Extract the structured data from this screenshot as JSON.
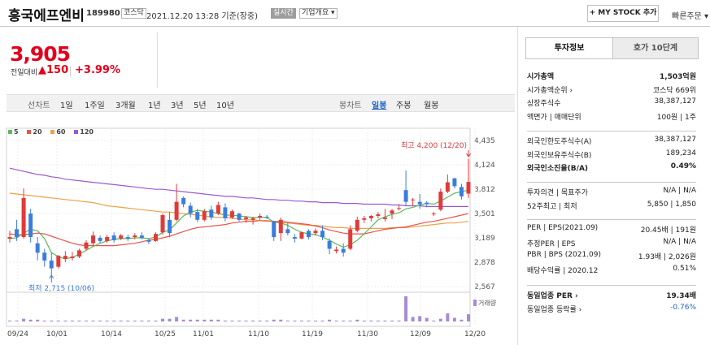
{
  "header": {
    "company_name": "흥국에프엔비",
    "stock_code": "189980",
    "market_tag": "코스닥",
    "datetime": "2021.12.20 13:28 기준(장중)",
    "realtime_tag": "실시간",
    "company_overview_tag": "기업개요 ▾",
    "mystock_button": "+ MY STOCK 추가",
    "quick_order": "빠른주문 ▾"
  },
  "quote": {
    "price": "3,905",
    "change_label": "전일대비",
    "change_abs": "▲150",
    "change_pct": "+3.99%"
  },
  "period_bar": {
    "line_label": "선차트",
    "line_items": [
      "1일",
      "1주일",
      "3개월",
      "1년",
      "3년",
      "5년",
      "10년"
    ],
    "candle_label": "봉차트",
    "candle_items": [
      "일봉",
      "주봉",
      "월봉"
    ],
    "active_candle": "일봉"
  },
  "legend": [
    {
      "label": "5",
      "color": "#5cb85c"
    },
    {
      "label": "20",
      "color": "#e8544b"
    },
    {
      "label": "60",
      "color": "#f0a048"
    },
    {
      "label": "120",
      "color": "#9b59d0"
    }
  ],
  "chart_data": {
    "type": "candlestick",
    "y_ticks": [
      "4,435",
      "4,124",
      "3,812",
      "3,501",
      "3,189",
      "2,878",
      "2,567"
    ],
    "ylim": [
      2567,
      4435
    ],
    "x_ticks": [
      "09/24",
      "10/01",
      "10/14",
      "10/25",
      "11/01",
      "11/10",
      "11/19",
      "11/30",
      "12/09",
      "12/20"
    ],
    "high_annotation": "최고 4,200 (12/20)",
    "low_annotation": "최저 2,715 (10/06)",
    "volume_label": "거래량",
    "up_color": "#e03a3a",
    "down_color": "#3b7ddd",
    "candles": [
      {
        "o": 3180,
        "h": 3280,
        "l": 3130,
        "c": 3200
      },
      {
        "o": 3300,
        "h": 3420,
        "l": 3150,
        "c": 3200
      },
      {
        "o": 3200,
        "h": 3820,
        "l": 3180,
        "c": 3700
      },
      {
        "o": 3500,
        "h": 3560,
        "l": 3130,
        "c": 3200
      },
      {
        "o": 3120,
        "h": 3200,
        "l": 2900,
        "c": 3000
      },
      {
        "o": 3000,
        "h": 3050,
        "l": 2820,
        "c": 2900
      },
      {
        "o": 2900,
        "h": 3000,
        "l": 2715,
        "c": 2800
      },
      {
        "o": 2820,
        "h": 2970,
        "l": 2800,
        "c": 2960
      },
      {
        "o": 2920,
        "h": 3020,
        "l": 2880,
        "c": 2960
      },
      {
        "o": 2930,
        "h": 3010,
        "l": 2900,
        "c": 2950
      },
      {
        "o": 2950,
        "h": 3050,
        "l": 2930,
        "c": 3030
      },
      {
        "o": 3050,
        "h": 3160,
        "l": 3030,
        "c": 3130
      },
      {
        "o": 3120,
        "h": 3270,
        "l": 3080,
        "c": 3220
      },
      {
        "o": 3190,
        "h": 3220,
        "l": 3120,
        "c": 3150
      },
      {
        "o": 3150,
        "h": 3230,
        "l": 3130,
        "c": 3200
      },
      {
        "o": 3220,
        "h": 3260,
        "l": 3130,
        "c": 3160
      },
      {
        "o": 3180,
        "h": 3240,
        "l": 3160,
        "c": 3220
      },
      {
        "o": 3200,
        "h": 3230,
        "l": 3150,
        "c": 3180
      },
      {
        "o": 3200,
        "h": 3250,
        "l": 3170,
        "c": 3220
      },
      {
        "o": 3220,
        "h": 3260,
        "l": 3170,
        "c": 3190
      },
      {
        "o": 3160,
        "h": 3180,
        "l": 3110,
        "c": 3140
      },
      {
        "o": 3150,
        "h": 3260,
        "l": 3140,
        "c": 3240
      },
      {
        "o": 3260,
        "h": 3500,
        "l": 3230,
        "c": 3480
      },
      {
        "o": 3420,
        "h": 3520,
        "l": 3200,
        "c": 3250
      },
      {
        "o": 3420,
        "h": 3880,
        "l": 3400,
        "c": 3650
      },
      {
        "o": 3700,
        "h": 3720,
        "l": 3580,
        "c": 3620
      },
      {
        "o": 3600,
        "h": 3640,
        "l": 3450,
        "c": 3500
      },
      {
        "o": 3520,
        "h": 3560,
        "l": 3390,
        "c": 3420
      },
      {
        "o": 3420,
        "h": 3560,
        "l": 3400,
        "c": 3530
      },
      {
        "o": 3550,
        "h": 3600,
        "l": 3420,
        "c": 3450
      },
      {
        "o": 3500,
        "h": 3650,
        "l": 3480,
        "c": 3610
      },
      {
        "o": 3580,
        "h": 3630,
        "l": 3400,
        "c": 3440
      },
      {
        "o": 3450,
        "h": 3550,
        "l": 3430,
        "c": 3530
      },
      {
        "o": 3500,
        "h": 3510,
        "l": 3400,
        "c": 3420
      },
      {
        "o": 3430,
        "h": 3470,
        "l": 3380,
        "c": 3450
      },
      {
        "o": 3420,
        "h": 3460,
        "l": 3360,
        "c": 3440
      },
      {
        "o": 3450,
        "h": 3500,
        "l": 3420,
        "c": 3470
      },
      {
        "o": 3460,
        "h": 3480,
        "l": 3430,
        "c": 3450
      },
      {
        "o": 3400,
        "h": 3410,
        "l": 3150,
        "c": 3200
      },
      {
        "o": 3250,
        "h": 3450,
        "l": 3150,
        "c": 3420
      },
      {
        "o": 3300,
        "h": 3380,
        "l": 3220,
        "c": 3250
      },
      {
        "o": 3200,
        "h": 3240,
        "l": 3130,
        "c": 3180
      },
      {
        "o": 3180,
        "h": 3270,
        "l": 3170,
        "c": 3260
      },
      {
        "o": 3280,
        "h": 3300,
        "l": 3170,
        "c": 3200
      },
      {
        "o": 3250,
        "h": 3310,
        "l": 3220,
        "c": 3280
      },
      {
        "o": 3280,
        "h": 3350,
        "l": 3160,
        "c": 3200
      },
      {
        "o": 3150,
        "h": 3180,
        "l": 2980,
        "c": 3050
      },
      {
        "o": 3020,
        "h": 3080,
        "l": 2990,
        "c": 3040
      },
      {
        "o": 3050,
        "h": 3120,
        "l": 2950,
        "c": 3000
      },
      {
        "o": 3050,
        "h": 3350,
        "l": 3030,
        "c": 3300
      },
      {
        "o": 3280,
        "h": 3460,
        "l": 3260,
        "c": 3420
      },
      {
        "o": 3420,
        "h": 3470,
        "l": 3380,
        "c": 3440
      },
      {
        "o": 3440,
        "h": 3480,
        "l": 3400,
        "c": 3470
      },
      {
        "o": 3470,
        "h": 3520,
        "l": 3440,
        "c": 3490
      },
      {
        "o": 3430,
        "h": 3560,
        "l": 3400,
        "c": 3450
      },
      {
        "o": 3500,
        "h": 3560,
        "l": 3430,
        "c": 3540
      },
      {
        "o": 3560,
        "h": 3620,
        "l": 3540,
        "c": 3570
      },
      {
        "o": 3800,
        "h": 4050,
        "l": 3600,
        "c": 3650
      },
      {
        "o": 3680,
        "h": 3700,
        "l": 3600,
        "c": 3680
      },
      {
        "o": 3650,
        "h": 3750,
        "l": 3560,
        "c": 3620
      },
      {
        "o": 3640,
        "h": 3660,
        "l": 3580,
        "c": 3620
      },
      {
        "o": 3490,
        "h": 3520,
        "l": 3470,
        "c": 3500
      },
      {
        "o": 3550,
        "h": 3820,
        "l": 3530,
        "c": 3780
      },
      {
        "o": 3780,
        "h": 4000,
        "l": 3760,
        "c": 3900
      },
      {
        "o": 3950,
        "h": 3960,
        "l": 3820,
        "c": 3850
      },
      {
        "o": 3840,
        "h": 3880,
        "l": 3680,
        "c": 3720
      },
      {
        "o": 3755,
        "h": 4200,
        "l": 3700,
        "c": 3905
      }
    ],
    "ma5": [
      3180,
      3190,
      3250,
      3300,
      3280,
      3180,
      3000,
      2950,
      2920,
      2940,
      2980,
      3030,
      3080,
      3120,
      3150,
      3170,
      3180,
      3180,
      3190,
      3190,
      3180,
      3200,
      3260,
      3290,
      3380,
      3470,
      3520,
      3540,
      3530,
      3520,
      3500,
      3480,
      3480,
      3470,
      3460,
      3450,
      3450,
      3450,
      3390,
      3380,
      3350,
      3300,
      3260,
      3240,
      3230,
      3200,
      3160,
      3110,
      3070,
      3100,
      3160,
      3240,
      3330,
      3420,
      3460,
      3490,
      3510,
      3560,
      3580,
      3610,
      3630,
      3620,
      3660,
      3710,
      3760,
      3780,
      3800
    ],
    "ma20": [
      3240,
      3230,
      3230,
      3240,
      3250,
      3240,
      3210,
      3180,
      3150,
      3120,
      3100,
      3090,
      3090,
      3090,
      3090,
      3090,
      3100,
      3110,
      3120,
      3140,
      3160,
      3170,
      3190,
      3210,
      3240,
      3270,
      3300,
      3320,
      3330,
      3340,
      3350,
      3360,
      3380,
      3390,
      3400,
      3400,
      3410,
      3410,
      3400,
      3400,
      3390,
      3380,
      3370,
      3360,
      3340,
      3320,
      3290,
      3270,
      3250,
      3240,
      3240,
      3240,
      3260,
      3280,
      3300,
      3310,
      3320,
      3330,
      3350,
      3370,
      3390,
      3400,
      3420,
      3440,
      3460,
      3480,
      3500
    ],
    "ma60": [
      3760,
      3750,
      3740,
      3730,
      3720,
      3710,
      3700,
      3690,
      3680,
      3670,
      3660,
      3650,
      3640,
      3620,
      3600,
      3590,
      3580,
      3570,
      3560,
      3550,
      3540,
      3530,
      3520,
      3520,
      3510,
      3500,
      3490,
      3480,
      3470,
      3460,
      3450,
      3450,
      3440,
      3430,
      3420,
      3420,
      3410,
      3400,
      3400,
      3390,
      3380,
      3370,
      3360,
      3350,
      3350,
      3340,
      3330,
      3320,
      3320,
      3310,
      3310,
      3310,
      3310,
      3310,
      3310,
      3320,
      3320,
      3320,
      3330,
      3340,
      3350,
      3360,
      3370,
      3380,
      3380,
      3390,
      3400
    ],
    "ma120": [
      4080,
      4060,
      4040,
      4020,
      4000,
      3990,
      3970,
      3960,
      3940,
      3930,
      3920,
      3910,
      3900,
      3890,
      3880,
      3870,
      3860,
      3850,
      3840,
      3830,
      3820,
      3810,
      3810,
      3800,
      3790,
      3780,
      3770,
      3760,
      3750,
      3740,
      3730,
      3720,
      3720,
      3710,
      3700,
      3700,
      3690,
      3680,
      3680,
      3670,
      3670,
      3660,
      3660,
      3650,
      3650,
      3640,
      3640,
      3640,
      3630,
      3630,
      3630,
      3620,
      3620,
      3620,
      3620,
      3610,
      3610,
      3600,
      3600,
      3600,
      3590,
      3590,
      3590,
      3590,
      3590,
      3590,
      3590
    ],
    "volume": [
      1,
      1,
      3,
      2,
      2,
      1,
      1,
      1,
      1,
      1,
      1,
      1,
      1,
      1,
      1,
      1,
      1,
      1,
      1,
      1,
      1,
      1,
      3,
      3,
      5,
      2,
      2,
      2,
      2,
      2,
      2,
      1,
      1,
      1,
      1,
      1,
      1,
      1,
      2,
      2,
      1,
      1,
      1,
      1,
      1,
      1,
      2,
      1,
      1,
      1,
      2,
      1,
      1,
      1,
      1,
      1,
      1,
      28,
      5,
      6,
      4,
      1,
      3,
      9,
      4,
      2,
      8
    ]
  },
  "right_panel": {
    "tab_info": "투자정보",
    "tab_quote": "호가 10단계",
    "group1": [
      {
        "k": "시가총액",
        "v": "1,503억원",
        "bold": true
      },
      {
        "k": "시가총액순위 ›",
        "v": "코스닥 669위",
        "bold": false
      },
      {
        "k": "상장주식수",
        "v": "38,387,127",
        "bold": false
      },
      {
        "k": "액면가 | 매매단위",
        "v": "100원 | 1주",
        "bold": false
      }
    ],
    "group2": [
      {
        "k": "외국인한도주식수(A)",
        "v": "38,387,127",
        "bold": false
      },
      {
        "k": "외국인보유주식수(B)",
        "v": "189,234",
        "bold": false
      },
      {
        "k": "외국인소진율(B/A)",
        "v": "0.49%",
        "bold": true
      }
    ],
    "group3": [
      {
        "k": "투자의견 | 목표주가",
        "v": "N/A | N/A",
        "bold": false
      },
      {
        "k": "52주최고 | 최저",
        "v": "5,850 | 1,850",
        "bold": false
      }
    ],
    "group4": [
      {
        "k": "PER | EPS(2021.09)",
        "v": "20.45배 | 191원",
        "bold": false
      },
      {
        "k": "추정PER | EPS",
        "v": "N/A | N/A",
        "bold": false
      },
      {
        "k": "PBR | BPS (2021.09)",
        "v": "1.93배 | 2,026원",
        "bold": false
      },
      {
        "k": "배당수익률 | 2020.12",
        "v": "0.51%",
        "bold": false
      }
    ],
    "group5": [
      {
        "k": "동일업종 PER ›",
        "v": "19.34배",
        "bold": true
      },
      {
        "k": "동일업종 등락률 ›",
        "v": "-0.76%",
        "bold": false,
        "color": "#1e64c8"
      }
    ]
  }
}
